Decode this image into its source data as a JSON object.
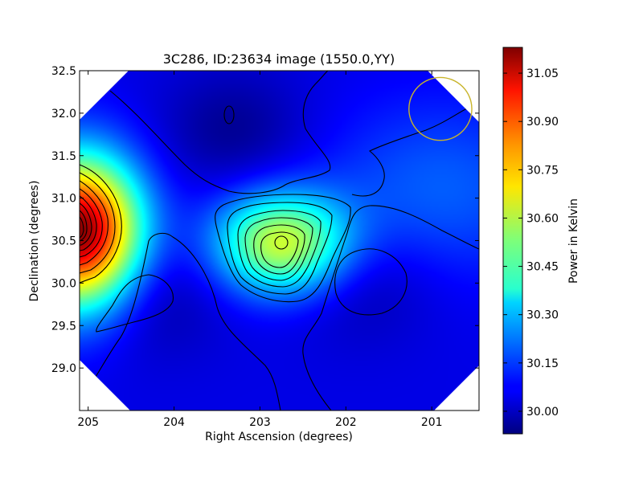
{
  "chart_data": {
    "type": "heatmap",
    "title": "3C286, ID:23634 image (1550.0,YY)",
    "xlabel": "Right Ascension (degrees)",
    "ylabel": "Declination (degrees)",
    "colorbar_label": "Power in Kelvin",
    "xlim": [
      205.1,
      200.45
    ],
    "ylim": [
      28.5,
      32.5
    ],
    "x_ticks": [
      205,
      204,
      203,
      202,
      201
    ],
    "y_ticks": [
      29.0,
      29.5,
      30.0,
      30.5,
      31.0,
      31.5,
      32.0,
      32.5
    ],
    "y_tick_labels": [
      "29.0",
      "29.5",
      "30.0",
      "30.5",
      "31.0",
      "31.5",
      "32.0",
      "32.5"
    ],
    "colorbar_range": [
      29.93,
      31.13
    ],
    "colorbar_ticks": [
      30.0,
      30.15,
      30.3,
      30.45,
      30.6,
      30.75,
      30.9,
      31.05
    ],
    "colorbar_tick_labels": [
      "30.00",
      "30.15",
      "30.30",
      "30.45",
      "30.60",
      "30.75",
      "30.90",
      "31.05"
    ],
    "colormap": "jet",
    "background_level": 30.05,
    "field_features": [
      {
        "feature": "hot-source",
        "ra": 205.1,
        "dec": 30.6,
        "peak": 31.13
      },
      {
        "feature": "central-source",
        "ra": 202.75,
        "dec": 30.47,
        "peak": 30.62
      },
      {
        "feature": "bright-region",
        "ra": 200.9,
        "dec": 31.1,
        "peak": 30.19
      },
      {
        "feature": "cold-region",
        "ra": 203.3,
        "dec": 31.8,
        "peak": 29.95
      },
      {
        "feature": "cold-region",
        "ra": 204.3,
        "dec": 29.85,
        "peak": 29.96
      },
      {
        "feature": "cold-region",
        "ra": 201.8,
        "dec": 30.0,
        "peak": 29.97
      }
    ],
    "marker": {
      "shape": "circle",
      "ra": 200.9,
      "dec": 32.05,
      "radius_deg": 0.37,
      "color": "#c8b42a"
    }
  }
}
